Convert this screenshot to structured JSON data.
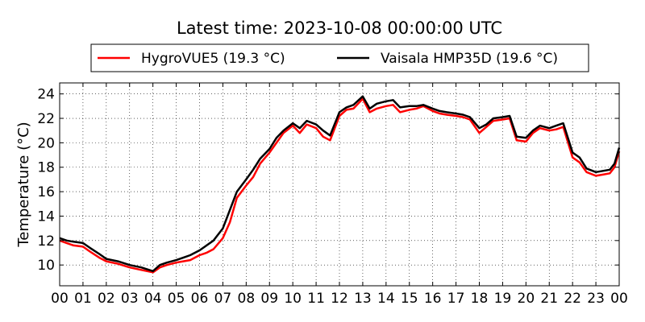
{
  "chart_data": {
    "type": "line",
    "title": "Latest time: 2023-10-08 00:00:00 UTC",
    "ylabel": "Temperature (°C)",
    "xlabel": "",
    "xlim": [
      0,
      24
    ],
    "ylim": [
      8.3,
      24.9
    ],
    "x_tick_labels": [
      "00",
      "01",
      "02",
      "03",
      "04",
      "05",
      "06",
      "07",
      "08",
      "09",
      "10",
      "11",
      "12",
      "13",
      "14",
      "15",
      "16",
      "17",
      "18",
      "19",
      "20",
      "21",
      "22",
      "23",
      "00"
    ],
    "y_ticks": [
      10,
      12,
      14,
      16,
      18,
      20,
      22,
      24
    ],
    "y_tick_labels": [
      "10",
      "12",
      "14",
      "16",
      "18",
      "20",
      "22",
      "24"
    ],
    "grid": true,
    "legend_position": "top-center",
    "series": [
      {
        "name": "HygroVUE5 (19.3 °C)",
        "color": "#ff0000",
        "x": [
          0,
          0.3,
          0.6,
          1.0,
          1.3,
          1.7,
          2.0,
          2.5,
          3.0,
          3.5,
          4.0,
          4.3,
          4.6,
          5.0,
          5.3,
          5.6,
          6.0,
          6.3,
          6.6,
          7.0,
          7.3,
          7.6,
          8.0,
          8.3,
          8.6,
          9.0,
          9.3,
          9.6,
          10.0,
          10.3,
          10.6,
          11.0,
          11.3,
          11.6,
          12.0,
          12.3,
          12.6,
          13.0,
          13.3,
          13.6,
          14.0,
          14.3,
          14.6,
          15.0,
          15.3,
          15.6,
          16.0,
          16.3,
          16.6,
          17.0,
          17.3,
          17.6,
          18.0,
          18.3,
          18.6,
          19.0,
          19.3,
          19.6,
          20.0,
          20.3,
          20.6,
          21.0,
          21.3,
          21.6,
          22.0,
          22.3,
          22.6,
          23.0,
          23.3,
          23.6,
          23.8,
          24.0
        ],
        "y": [
          12.0,
          11.8,
          11.6,
          11.5,
          11.1,
          10.6,
          10.3,
          10.1,
          9.8,
          9.6,
          9.4,
          9.8,
          10.0,
          10.2,
          10.3,
          10.4,
          10.8,
          11.0,
          11.3,
          12.2,
          13.5,
          15.5,
          16.5,
          17.2,
          18.3,
          19.2,
          20.0,
          20.8,
          21.4,
          20.8,
          21.5,
          21.2,
          20.5,
          20.2,
          22.2,
          22.7,
          22.8,
          23.6,
          22.5,
          22.8,
          23.0,
          23.1,
          22.5,
          22.7,
          22.8,
          23.0,
          22.6,
          22.4,
          22.3,
          22.2,
          22.1,
          21.9,
          20.8,
          21.3,
          21.8,
          21.9,
          22.0,
          20.2,
          20.1,
          20.8,
          21.2,
          21.0,
          21.1,
          21.3,
          18.8,
          18.4,
          17.6,
          17.3,
          17.4,
          17.5,
          18.0,
          19.3
        ]
      },
      {
        "name": "Vaisala HMP35D (19.6 °C)",
        "color": "#000000",
        "x": [
          0,
          0.3,
          0.6,
          1.0,
          1.3,
          1.7,
          2.0,
          2.5,
          3.0,
          3.5,
          4.0,
          4.3,
          4.6,
          5.0,
          5.3,
          5.6,
          6.0,
          6.3,
          6.6,
          7.0,
          7.3,
          7.6,
          8.0,
          8.3,
          8.6,
          9.0,
          9.3,
          9.6,
          10.0,
          10.3,
          10.6,
          11.0,
          11.3,
          11.6,
          12.0,
          12.3,
          12.6,
          13.0,
          13.3,
          13.6,
          14.0,
          14.3,
          14.6,
          15.0,
          15.3,
          15.6,
          16.0,
          16.3,
          16.6,
          17.0,
          17.3,
          17.6,
          18.0,
          18.3,
          18.6,
          19.0,
          19.3,
          19.6,
          20.0,
          20.3,
          20.6,
          21.0,
          21.3,
          21.6,
          22.0,
          22.3,
          22.6,
          23.0,
          23.3,
          23.6,
          23.8,
          24.0
        ],
        "y": [
          12.2,
          12.0,
          11.9,
          11.8,
          11.4,
          10.9,
          10.5,
          10.3,
          10.0,
          9.8,
          9.5,
          10.0,
          10.2,
          10.4,
          10.6,
          10.8,
          11.2,
          11.6,
          12.0,
          13.0,
          14.5,
          16.0,
          17.0,
          17.8,
          18.7,
          19.5,
          20.4,
          21.0,
          21.6,
          21.2,
          21.8,
          21.5,
          21.0,
          20.6,
          22.5,
          22.9,
          23.1,
          23.8,
          22.8,
          23.2,
          23.4,
          23.5,
          22.9,
          23.0,
          23.0,
          23.1,
          22.8,
          22.6,
          22.5,
          22.4,
          22.3,
          22.1,
          21.2,
          21.5,
          22.0,
          22.1,
          22.2,
          20.5,
          20.4,
          21.0,
          21.4,
          21.2,
          21.4,
          21.6,
          19.2,
          18.8,
          17.9,
          17.6,
          17.7,
          17.8,
          18.3,
          19.6
        ]
      }
    ]
  }
}
